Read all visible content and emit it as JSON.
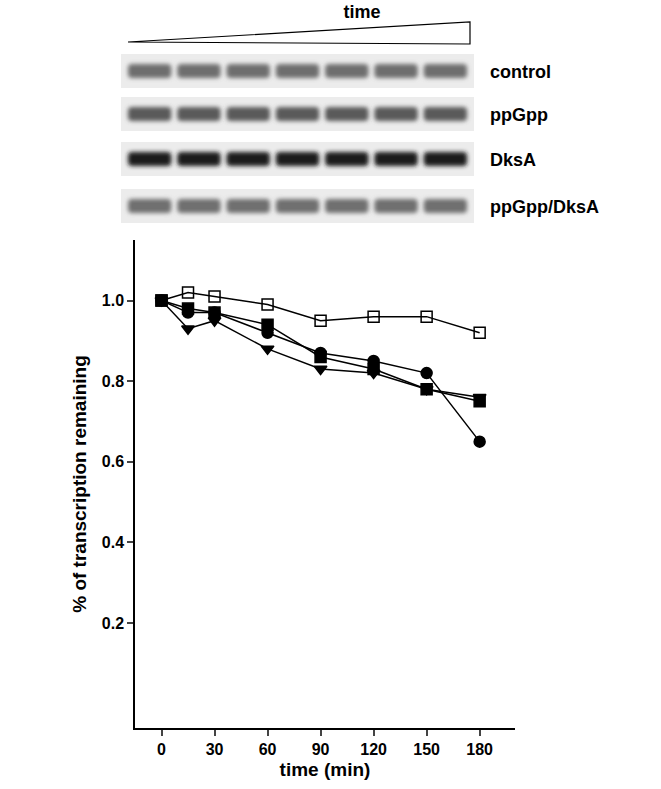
{
  "gel": {
    "title": "time",
    "lanes": [
      "control",
      "ppGpp",
      "DksA",
      "ppGpp/DksA"
    ]
  },
  "chart_data": {
    "type": "line",
    "x_label": "time (min)",
    "y_label": "% of transcription remaining",
    "x": [
      0,
      15,
      30,
      60,
      90,
      120,
      150,
      180
    ],
    "series": [
      {
        "color": "#000000",
        "marker": "square-open",
        "line_style": "solid",
        "values": [
          1.0,
          1.02,
          1.01,
          0.99,
          0.95,
          0.96,
          0.96,
          0.92
        ]
      },
      {
        "color": "#000000",
        "marker": "circle",
        "line_style": "solid",
        "values": [
          1.0,
          0.97,
          0.97,
          0.92,
          0.87,
          0.85,
          0.82,
          0.65
        ]
      },
      {
        "color": "#000000",
        "marker": "square",
        "line_style": "solid",
        "values": [
          1.0,
          0.98,
          0.97,
          0.94,
          0.86,
          0.83,
          0.78,
          0.75
        ]
      },
      {
        "color": "#000000",
        "marker": "triangle-down",
        "line_style": "solid",
        "values": [
          1.0,
          0.93,
          0.95,
          0.88,
          0.83,
          0.82,
          0.78,
          0.76
        ]
      }
    ],
    "xlim": [
      -15,
      200
    ],
    "ylim": [
      -0.06,
      1.15
    ],
    "xticks": [
      0,
      30,
      60,
      90,
      120,
      150,
      180
    ],
    "yticks": [
      0.2,
      0.4,
      0.6,
      0.8,
      1.0
    ],
    "grid": false
  }
}
